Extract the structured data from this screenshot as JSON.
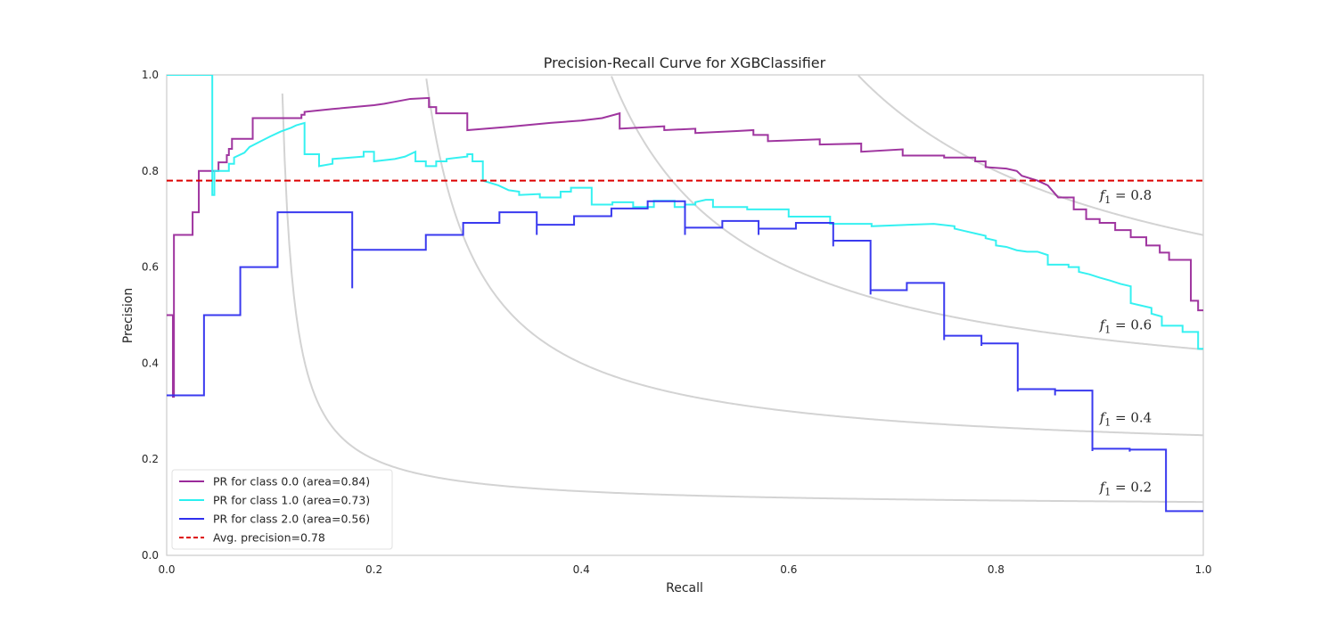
{
  "chart_data": {
    "type": "line",
    "title": "Precision-Recall Curve for XGBClassifier",
    "xlabel": "Recall",
    "ylabel": "Precision",
    "xlim": [
      0,
      1
    ],
    "ylim": [
      0,
      1
    ],
    "x_ticks": [
      "0.0",
      "0.2",
      "0.4",
      "0.6",
      "0.8",
      "1.0"
    ],
    "y_ticks": [
      "0.0",
      "0.2",
      "0.4",
      "0.6",
      "0.8",
      "1.0"
    ],
    "grid": false,
    "legend_position": "lower-left",
    "iso_f1_curves": [
      {
        "f1": 0.2,
        "label_prefix": "f",
        "label_sub": "1",
        "label_value": " = 0.2"
      },
      {
        "f1": 0.4,
        "label_prefix": "f",
        "label_sub": "1",
        "label_value": " = 0.4"
      },
      {
        "f1": 0.6,
        "label_prefix": "f",
        "label_sub": "1",
        "label_value": " = 0.6"
      },
      {
        "f1": 0.8,
        "label_prefix": "f",
        "label_sub": "1",
        "label_value": " = 0.8"
      }
    ],
    "average_precision": {
      "label": "Avg. precision=0.78",
      "value": 0.78,
      "color": "#dd0000"
    },
    "series": [
      {
        "name": "PR for class 0.0 (area=0.84)",
        "color": "#9a2a9a",
        "points": [
          [
            0.0,
            0.5
          ],
          [
            0.006,
            0.5
          ],
          [
            0.006,
            0.33
          ],
          [
            0.007,
            0.33
          ],
          [
            0.007,
            0.667
          ],
          [
            0.025,
            0.667
          ],
          [
            0.025,
            0.714
          ],
          [
            0.031,
            0.714
          ],
          [
            0.031,
            0.8
          ],
          [
            0.05,
            0.8
          ],
          [
            0.05,
            0.818
          ],
          [
            0.058,
            0.818
          ],
          [
            0.058,
            0.833
          ],
          [
            0.06,
            0.833
          ],
          [
            0.06,
            0.846
          ],
          [
            0.063,
            0.846
          ],
          [
            0.063,
            0.867
          ],
          [
            0.083,
            0.867
          ],
          [
            0.083,
            0.91
          ],
          [
            0.13,
            0.91
          ],
          [
            0.13,
            0.917
          ],
          [
            0.133,
            0.917
          ],
          [
            0.133,
            0.923
          ],
          [
            0.16,
            0.929
          ],
          [
            0.2,
            0.937
          ],
          [
            0.21,
            0.94
          ],
          [
            0.22,
            0.944
          ],
          [
            0.235,
            0.95
          ],
          [
            0.253,
            0.952
          ],
          [
            0.253,
            0.933
          ],
          [
            0.26,
            0.933
          ],
          [
            0.26,
            0.92
          ],
          [
            0.29,
            0.92
          ],
          [
            0.29,
            0.885
          ],
          [
            0.33,
            0.892
          ],
          [
            0.37,
            0.9
          ],
          [
            0.4,
            0.905
          ],
          [
            0.42,
            0.91
          ],
          [
            0.437,
            0.92
          ],
          [
            0.437,
            0.888
          ],
          [
            0.48,
            0.893
          ],
          [
            0.48,
            0.885
          ],
          [
            0.51,
            0.888
          ],
          [
            0.51,
            0.879
          ],
          [
            0.55,
            0.883
          ],
          [
            0.566,
            0.885
          ],
          [
            0.566,
            0.875
          ],
          [
            0.58,
            0.875
          ],
          [
            0.58,
            0.862
          ],
          [
            0.63,
            0.866
          ],
          [
            0.63,
            0.855
          ],
          [
            0.67,
            0.857
          ],
          [
            0.67,
            0.84
          ],
          [
            0.71,
            0.845
          ],
          [
            0.71,
            0.832
          ],
          [
            0.75,
            0.832
          ],
          [
            0.75,
            0.828
          ],
          [
            0.78,
            0.828
          ],
          [
            0.78,
            0.82
          ],
          [
            0.79,
            0.82
          ],
          [
            0.79,
            0.808
          ],
          [
            0.81,
            0.805
          ],
          [
            0.82,
            0.8
          ],
          [
            0.825,
            0.79
          ],
          [
            0.84,
            0.78
          ],
          [
            0.85,
            0.77
          ],
          [
            0.86,
            0.745
          ],
          [
            0.875,
            0.745
          ],
          [
            0.875,
            0.72
          ],
          [
            0.887,
            0.72
          ],
          [
            0.887,
            0.7
          ],
          [
            0.9,
            0.7
          ],
          [
            0.9,
            0.692
          ],
          [
            0.915,
            0.692
          ],
          [
            0.915,
            0.677
          ],
          [
            0.93,
            0.677
          ],
          [
            0.93,
            0.662
          ],
          [
            0.945,
            0.662
          ],
          [
            0.945,
            0.645
          ],
          [
            0.958,
            0.645
          ],
          [
            0.958,
            0.63
          ],
          [
            0.967,
            0.63
          ],
          [
            0.967,
            0.615
          ],
          [
            0.988,
            0.615
          ],
          [
            0.988,
            0.53
          ],
          [
            0.995,
            0.53
          ],
          [
            0.995,
            0.51
          ],
          [
            1.0,
            0.51
          ]
        ]
      },
      {
        "name": "PR for class 1.0 (area=0.73)",
        "color": "#2af0f0",
        "points": [
          [
            0.0,
            1.0
          ],
          [
            0.044,
            1.0
          ],
          [
            0.044,
            0.75
          ],
          [
            0.046,
            0.75
          ],
          [
            0.046,
            0.8
          ],
          [
            0.06,
            0.8
          ],
          [
            0.06,
            0.815
          ],
          [
            0.065,
            0.815
          ],
          [
            0.065,
            0.828
          ],
          [
            0.075,
            0.838
          ],
          [
            0.08,
            0.85
          ],
          [
            0.09,
            0.861
          ],
          [
            0.1,
            0.872
          ],
          [
            0.11,
            0.882
          ],
          [
            0.12,
            0.89
          ],
          [
            0.125,
            0.895
          ],
          [
            0.133,
            0.9
          ],
          [
            0.133,
            0.835
          ],
          [
            0.147,
            0.835
          ],
          [
            0.147,
            0.81
          ],
          [
            0.16,
            0.815
          ],
          [
            0.16,
            0.825
          ],
          [
            0.19,
            0.83
          ],
          [
            0.19,
            0.84
          ],
          [
            0.2,
            0.84
          ],
          [
            0.2,
            0.82
          ],
          [
            0.22,
            0.825
          ],
          [
            0.23,
            0.83
          ],
          [
            0.24,
            0.84
          ],
          [
            0.24,
            0.82
          ],
          [
            0.25,
            0.82
          ],
          [
            0.25,
            0.81
          ],
          [
            0.26,
            0.81
          ],
          [
            0.26,
            0.82
          ],
          [
            0.27,
            0.82
          ],
          [
            0.27,
            0.825
          ],
          [
            0.29,
            0.83
          ],
          [
            0.29,
            0.835
          ],
          [
            0.295,
            0.835
          ],
          [
            0.295,
            0.82
          ],
          [
            0.305,
            0.82
          ],
          [
            0.305,
            0.8
          ],
          [
            0.305,
            0.78
          ],
          [
            0.32,
            0.77
          ],
          [
            0.33,
            0.76
          ],
          [
            0.34,
            0.757
          ],
          [
            0.34,
            0.75
          ],
          [
            0.36,
            0.752
          ],
          [
            0.36,
            0.745
          ],
          [
            0.38,
            0.745
          ],
          [
            0.38,
            0.757
          ],
          [
            0.39,
            0.757
          ],
          [
            0.39,
            0.765
          ],
          [
            0.41,
            0.765
          ],
          [
            0.41,
            0.73
          ],
          [
            0.43,
            0.73
          ],
          [
            0.43,
            0.735
          ],
          [
            0.45,
            0.735
          ],
          [
            0.45,
            0.725
          ],
          [
            0.47,
            0.725
          ],
          [
            0.47,
            0.738
          ],
          [
            0.49,
            0.738
          ],
          [
            0.49,
            0.725
          ],
          [
            0.5,
            0.725
          ],
          [
            0.5,
            0.73
          ],
          [
            0.51,
            0.73
          ],
          [
            0.51,
            0.735
          ],
          [
            0.52,
            0.74
          ],
          [
            0.527,
            0.74
          ],
          [
            0.527,
            0.725
          ],
          [
            0.56,
            0.725
          ],
          [
            0.56,
            0.72
          ],
          [
            0.6,
            0.72
          ],
          [
            0.6,
            0.705
          ],
          [
            0.64,
            0.705
          ],
          [
            0.64,
            0.69
          ],
          [
            0.68,
            0.69
          ],
          [
            0.68,
            0.685
          ],
          [
            0.74,
            0.69
          ],
          [
            0.76,
            0.685
          ],
          [
            0.76,
            0.68
          ],
          [
            0.77,
            0.675
          ],
          [
            0.78,
            0.67
          ],
          [
            0.79,
            0.665
          ],
          [
            0.79,
            0.66
          ],
          [
            0.8,
            0.655
          ],
          [
            0.8,
            0.645
          ],
          [
            0.81,
            0.642
          ],
          [
            0.82,
            0.635
          ],
          [
            0.83,
            0.632
          ],
          [
            0.84,
            0.632
          ],
          [
            0.85,
            0.625
          ],
          [
            0.85,
            0.605
          ],
          [
            0.87,
            0.605
          ],
          [
            0.87,
            0.6
          ],
          [
            0.88,
            0.6
          ],
          [
            0.88,
            0.59
          ],
          [
            0.89,
            0.585
          ],
          [
            0.9,
            0.578
          ],
          [
            0.91,
            0.572
          ],
          [
            0.92,
            0.565
          ],
          [
            0.93,
            0.56
          ],
          [
            0.93,
            0.525
          ],
          [
            0.94,
            0.52
          ],
          [
            0.95,
            0.515
          ],
          [
            0.95,
            0.503
          ],
          [
            0.96,
            0.497
          ],
          [
            0.96,
            0.478
          ],
          [
            0.98,
            0.478
          ],
          [
            0.98,
            0.465
          ],
          [
            0.995,
            0.465
          ],
          [
            0.995,
            0.43
          ],
          [
            1.0,
            0.43
          ]
        ]
      },
      {
        "name": "PR for class 2.0 (area=0.56)",
        "color": "#2f2fee",
        "points": [
          [
            0.0,
            0.333
          ],
          [
            0.036,
            0.333
          ],
          [
            0.036,
            0.5
          ],
          [
            0.071,
            0.5
          ],
          [
            0.071,
            0.6
          ],
          [
            0.107,
            0.6
          ],
          [
            0.107,
            0.714
          ],
          [
            0.179,
            0.714
          ],
          [
            0.179,
            0.556
          ],
          [
            0.179,
            0.636
          ],
          [
            0.25,
            0.636
          ],
          [
            0.25,
            0.667
          ],
          [
            0.286,
            0.667
          ],
          [
            0.286,
            0.692
          ],
          [
            0.321,
            0.692
          ],
          [
            0.321,
            0.714
          ],
          [
            0.357,
            0.714
          ],
          [
            0.357,
            0.667
          ],
          [
            0.357,
            0.688
          ],
          [
            0.393,
            0.688
          ],
          [
            0.393,
            0.706
          ],
          [
            0.429,
            0.706
          ],
          [
            0.429,
            0.722
          ],
          [
            0.464,
            0.722
          ],
          [
            0.464,
            0.737
          ],
          [
            0.5,
            0.737
          ],
          [
            0.5,
            0.667
          ],
          [
            0.5,
            0.682
          ],
          [
            0.536,
            0.682
          ],
          [
            0.536,
            0.696
          ],
          [
            0.571,
            0.696
          ],
          [
            0.571,
            0.667
          ],
          [
            0.571,
            0.68
          ],
          [
            0.607,
            0.68
          ],
          [
            0.607,
            0.692
          ],
          [
            0.643,
            0.692
          ],
          [
            0.643,
            0.643
          ],
          [
            0.643,
            0.655
          ],
          [
            0.679,
            0.655
          ],
          [
            0.679,
            0.543
          ],
          [
            0.679,
            0.552
          ],
          [
            0.714,
            0.552
          ],
          [
            0.714,
            0.567
          ],
          [
            0.75,
            0.567
          ],
          [
            0.75,
            0.448
          ],
          [
            0.75,
            0.457
          ],
          [
            0.786,
            0.457
          ],
          [
            0.786,
            0.436
          ],
          [
            0.786,
            0.441
          ],
          [
            0.821,
            0.441
          ],
          [
            0.821,
            0.341
          ],
          [
            0.821,
            0.346
          ],
          [
            0.857,
            0.346
          ],
          [
            0.857,
            0.333
          ],
          [
            0.857,
            0.343
          ],
          [
            0.893,
            0.343
          ],
          [
            0.893,
            0.217
          ],
          [
            0.893,
            0.222
          ],
          [
            0.929,
            0.222
          ],
          [
            0.929,
            0.216
          ],
          [
            0.929,
            0.22
          ],
          [
            0.964,
            0.22
          ],
          [
            0.964,
            0.092
          ],
          [
            1.0,
            0.092
          ]
        ]
      }
    ]
  }
}
